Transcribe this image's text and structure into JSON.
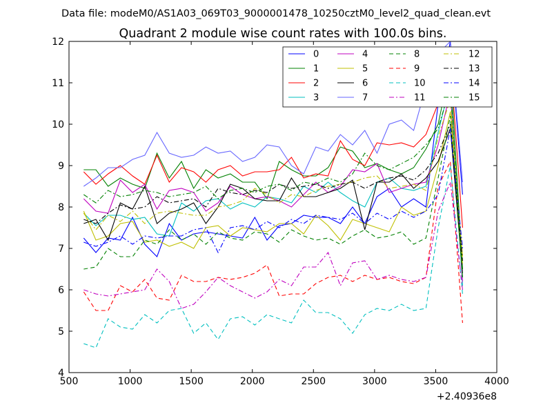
{
  "chart_data": {
    "type": "line",
    "supertitle": "Data file: modeM0/AS1A03_069T03_9000001478_10250cztM0_level2_quad_clean.evt",
    "title": "Quadrant 2 module wise count rates with 100.0s bins.",
    "xlabel": "",
    "ylabel": "",
    "x_offset_label": "+2.40936e8",
    "xlim": [
      500,
      4000
    ],
    "ylim": [
      4,
      12
    ],
    "xticks": [
      500,
      1000,
      1500,
      2000,
      2500,
      3000,
      3500,
      4000
    ],
    "yticks": [
      4,
      5,
      6,
      7,
      8,
      9,
      10,
      11,
      12
    ],
    "grid": false,
    "legend": "top-right",
    "x": [
      620,
      720,
      820,
      920,
      1020,
      1120,
      1220,
      1320,
      1420,
      1520,
      1620,
      1720,
      1820,
      1920,
      2020,
      2120,
      2220,
      2320,
      2420,
      2520,
      2620,
      2720,
      2820,
      2920,
      3020,
      3120,
      3220,
      3320,
      3420,
      3520,
      3620,
      3720
    ],
    "series": [
      {
        "name": "0",
        "color": "#0000ff",
        "dash": "solid",
        "values": [
          7.25,
          6.9,
          7.25,
          7.2,
          7.75,
          7.1,
          6.8,
          7.6,
          7.2,
          7.35,
          7.4,
          7.35,
          7.3,
          7.25,
          7.75,
          7.2,
          7.55,
          7.6,
          7.8,
          7.75,
          7.75,
          7.6,
          8.0,
          7.6,
          8.25,
          8.45,
          8.0,
          8.2,
          8.0,
          10.5,
          12.0,
          8.3
        ]
      },
      {
        "name": "1",
        "color": "#008000",
        "dash": "solid",
        "values": [
          8.9,
          8.9,
          8.5,
          8.7,
          8.55,
          8.45,
          9.3,
          8.7,
          9.1,
          8.45,
          8.9,
          8.7,
          8.8,
          8.6,
          8.6,
          8.2,
          9.1,
          8.9,
          8.75,
          8.75,
          8.95,
          9.45,
          9.35,
          8.95,
          9.05,
          8.9,
          8.8,
          8.95,
          9.4,
          10.0,
          11.4,
          6.5
        ]
      },
      {
        "name": "2",
        "color": "#ff0000",
        "dash": "solid",
        "values": [
          8.85,
          8.55,
          8.8,
          9.0,
          8.75,
          8.55,
          9.25,
          8.6,
          8.95,
          8.85,
          8.6,
          8.9,
          9.0,
          8.75,
          8.85,
          8.85,
          8.9,
          9.2,
          8.7,
          8.8,
          8.75,
          9.6,
          9.15,
          9.0,
          9.55,
          9.5,
          9.55,
          9.45,
          9.75,
          10.5,
          11.55,
          7.5
        ]
      },
      {
        "name": "3",
        "color": "#00bfbf",
        "dash": "solid",
        "values": [
          7.85,
          7.55,
          7.8,
          7.8,
          7.7,
          7.75,
          7.35,
          7.3,
          8.1,
          7.9,
          8.15,
          8.2,
          7.95,
          8.1,
          8.0,
          8.25,
          8.2,
          8.1,
          8.5,
          8.35,
          8.6,
          8.35,
          8.15,
          8.0,
          8.6,
          8.7,
          8.45,
          8.4,
          8.5,
          9.8,
          11.0,
          6.1
        ]
      },
      {
        "name": "4",
        "color": "#bf00bf",
        "dash": "solid",
        "values": [
          8.2,
          7.9,
          7.85,
          8.65,
          8.35,
          8.55,
          7.95,
          8.4,
          8.45,
          8.35,
          7.9,
          8.1,
          8.5,
          8.3,
          8.2,
          8.25,
          8.15,
          8.0,
          8.3,
          8.6,
          8.35,
          8.5,
          8.9,
          8.85,
          9.05,
          8.35,
          8.45,
          8.55,
          8.6,
          9.5,
          10.8,
          6.2
        ]
      },
      {
        "name": "5",
        "color": "#bfbf00",
        "dash": "solid",
        "values": [
          7.9,
          7.2,
          7.3,
          7.6,
          7.65,
          7.15,
          7.2,
          7.05,
          7.15,
          7.0,
          7.5,
          7.55,
          7.3,
          7.5,
          7.45,
          7.4,
          7.6,
          7.6,
          7.35,
          7.8,
          7.55,
          7.2,
          7.7,
          7.6,
          7.5,
          7.4,
          8.0,
          7.8,
          7.9,
          9.0,
          10.3,
          6.8
        ]
      },
      {
        "name": "6",
        "color": "#000000",
        "dash": "solid",
        "values": [
          7.6,
          7.7,
          7.2,
          8.1,
          7.95,
          8.5,
          7.6,
          7.85,
          7.95,
          8.1,
          7.6,
          8.0,
          8.55,
          8.45,
          8.2,
          8.15,
          8.15,
          8.7,
          8.25,
          8.25,
          8.35,
          8.45,
          8.65,
          7.45,
          8.6,
          8.6,
          8.8,
          8.45,
          8.7,
          9.1,
          9.9,
          6.4
        ]
      },
      {
        "name": "7",
        "color": "#6666ff",
        "dash": "solid",
        "values": [
          8.5,
          8.7,
          8.95,
          8.95,
          9.15,
          9.25,
          9.8,
          9.3,
          9.2,
          9.25,
          9.45,
          9.3,
          9.35,
          9.1,
          9.2,
          9.5,
          9.45,
          9.0,
          8.8,
          9.45,
          9.35,
          9.75,
          9.5,
          9.85,
          9.3,
          10.0,
          10.1,
          9.85,
          10.9,
          11.7,
          12.0,
          8.6
        ]
      },
      {
        "name": "8",
        "color": "#008000",
        "dash": "dashed",
        "values": [
          6.5,
          6.55,
          7.0,
          6.8,
          6.8,
          7.2,
          7.1,
          7.45,
          7.2,
          7.35,
          7.1,
          7.4,
          7.25,
          7.2,
          7.4,
          7.35,
          7.15,
          7.45,
          7.3,
          7.2,
          7.25,
          7.1,
          7.3,
          7.45,
          7.25,
          7.3,
          7.4,
          7.1,
          7.25,
          8.7,
          10.2,
          6.3
        ]
      },
      {
        "name": "9",
        "color": "#ff0000",
        "dash": "dashed",
        "values": [
          5.95,
          5.5,
          5.5,
          6.1,
          5.95,
          6.25,
          5.8,
          5.75,
          6.35,
          6.2,
          6.2,
          6.3,
          6.25,
          6.3,
          6.4,
          6.6,
          5.85,
          5.9,
          5.9,
          6.15,
          6.3,
          6.35,
          6.2,
          6.35,
          6.25,
          6.3,
          6.2,
          6.15,
          6.3,
          8.5,
          9.1,
          5.2
        ]
      },
      {
        "name": "10",
        "color": "#00bfbf",
        "dash": "dashed",
        "values": [
          4.7,
          4.6,
          5.3,
          5.1,
          5.05,
          5.4,
          5.2,
          5.5,
          5.55,
          4.95,
          5.2,
          4.8,
          5.3,
          5.35,
          5.15,
          5.4,
          5.3,
          5.2,
          5.75,
          5.45,
          5.45,
          5.3,
          4.95,
          5.4,
          5.55,
          5.5,
          5.65,
          5.5,
          5.55,
          7.5,
          9.0,
          5.9
        ]
      },
      {
        "name": "11",
        "color": "#bf00bf",
        "dash": "dashdot",
        "values": [
          6.0,
          5.9,
          5.85,
          5.9,
          5.95,
          6.0,
          6.5,
          6.2,
          5.55,
          5.65,
          5.95,
          6.3,
          6.1,
          5.95,
          5.8,
          5.95,
          6.25,
          6.1,
          6.55,
          6.55,
          6.9,
          6.1,
          6.65,
          6.7,
          6.25,
          6.35,
          6.25,
          6.2,
          6.3,
          7.9,
          8.6,
          6.0
        ]
      },
      {
        "name": "12",
        "color": "#bfbf00",
        "dash": "dashdot",
        "values": [
          7.85,
          7.45,
          7.8,
          7.65,
          7.9,
          7.6,
          7.85,
          7.9,
          7.85,
          7.8,
          7.8,
          8.0,
          8.05,
          8.15,
          8.45,
          8.3,
          8.1,
          8.3,
          8.25,
          8.4,
          8.5,
          8.55,
          8.6,
          8.7,
          8.75,
          8.45,
          8.5,
          8.55,
          8.4,
          9.7,
          10.6,
          6.6
        ]
      },
      {
        "name": "13",
        "color": "#000000",
        "dash": "dashdot",
        "values": [
          7.7,
          7.6,
          7.85,
          8.05,
          7.95,
          8.0,
          8.25,
          8.1,
          8.15,
          8.2,
          8.0,
          8.45,
          8.35,
          8.3,
          8.4,
          8.35,
          8.55,
          8.45,
          8.5,
          8.55,
          8.45,
          8.55,
          8.6,
          8.45,
          8.6,
          8.7,
          8.75,
          8.65,
          8.9,
          9.3,
          10.0,
          6.7
        ]
      },
      {
        "name": "14",
        "color": "#0000ff",
        "dash": "dashdot",
        "values": [
          7.15,
          7.05,
          7.15,
          7.3,
          7.1,
          7.3,
          7.25,
          7.3,
          7.3,
          7.45,
          7.5,
          6.9,
          7.5,
          7.55,
          7.45,
          7.65,
          7.5,
          7.7,
          7.6,
          7.8,
          7.75,
          7.7,
          7.85,
          7.6,
          7.85,
          7.7,
          7.9,
          7.75,
          7.9,
          8.3,
          9.9,
          7.0
        ]
      },
      {
        "name": "15",
        "color": "#008000",
        "dash": "dashdot",
        "values": [
          8.3,
          8.1,
          8.4,
          8.25,
          8.3,
          8.4,
          8.35,
          8.25,
          8.3,
          8.35,
          8.5,
          8.2,
          8.4,
          8.45,
          8.35,
          8.5,
          8.55,
          8.4,
          8.6,
          8.55,
          8.7,
          8.6,
          8.8,
          9.3,
          9.0,
          8.9,
          9.05,
          9.2,
          9.5,
          9.9,
          10.9,
          6.3
        ]
      }
    ]
  }
}
